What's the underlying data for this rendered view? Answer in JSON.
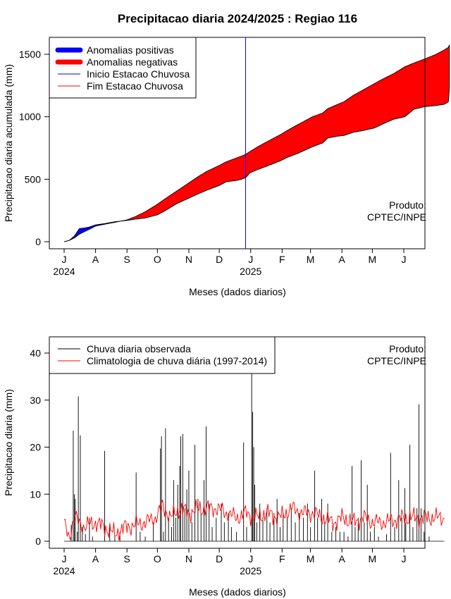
{
  "title": "Precipitacao diaria 2024/2025 : Regiao 116",
  "credit_line1": "Produto:",
  "credit_line2": "CPTEC/INPE",
  "chart_data": [
    {
      "type": "area",
      "ylabel": "Precipitacao diaria acumulada (mm)",
      "xlabel": "Meses (dados diarios)",
      "ylim": [
        0,
        1600
      ],
      "yticks": [
        0,
        500,
        1000,
        1500
      ],
      "months": [
        "J",
        "A",
        "S",
        "O",
        "N",
        "D",
        "J",
        "F",
        "M",
        "A",
        "M",
        "J"
      ],
      "years": [
        "2024",
        "2025"
      ],
      "legend": [
        {
          "label": "Anomalias positivas",
          "color": "#0000ff",
          "kind": "thick"
        },
        {
          "label": "Anomalias negativas",
          "color": "#ff0000",
          "kind": "thick"
        },
        {
          "label": "Inicio Estacao Chuvosa",
          "color": "#0000ff",
          "kind": "thin"
        },
        {
          "label": "Fim Estacao Chuvosa",
          "color": "#ff0000",
          "kind": "thin"
        }
      ],
      "rainy_season_start_day": 179,
      "x_days": [
        0,
        5,
        10,
        15,
        20,
        25,
        31,
        40,
        50,
        62,
        70,
        80,
        92,
        100,
        110,
        122,
        130,
        140,
        153,
        160,
        170,
        175,
        178,
        180,
        183,
        190,
        200,
        214,
        220,
        230,
        245,
        255,
        260,
        270,
        276,
        285,
        295,
        306,
        315,
        325,
        336,
        345,
        355,
        367,
        375,
        379,
        380
      ],
      "observed_mm": [
        0,
        10,
        45,
        105,
        110,
        118,
        135,
        145,
        160,
        170,
        180,
        190,
        215,
        250,
        300,
        345,
        375,
        410,
        450,
        480,
        490,
        500,
        510,
        520,
        550,
        575,
        605,
        650,
        675,
        705,
        760,
        790,
        830,
        845,
        850,
        875,
        890,
        910,
        945,
        980,
        1000,
        1060,
        1080,
        1090,
        1100,
        1120,
        1225
      ],
      "climatology_mm": [
        0,
        10,
        30,
        60,
        80,
        100,
        125,
        140,
        155,
        175,
        200,
        240,
        300,
        345,
        400,
        465,
        510,
        560,
        610,
        640,
        670,
        685,
        695,
        705,
        720,
        755,
        800,
        860,
        890,
        935,
        1000,
        1030,
        1065,
        1100,
        1120,
        1170,
        1215,
        1265,
        1305,
        1345,
        1400,
        1430,
        1460,
        1500,
        1535,
        1555,
        1575
      ]
    },
    {
      "type": "bar",
      "ylabel": "Precipitacao diaria (mm)",
      "xlabel": "Meses (dados diarios)",
      "ylim": [
        0,
        42
      ],
      "yticks": [
        0,
        10,
        20,
        30,
        40
      ],
      "months": [
        "J",
        "A",
        "S",
        "O",
        "N",
        "D",
        "J",
        "F",
        "M",
        "A",
        "M",
        "J"
      ],
      "years": [
        "2024",
        "2025"
      ],
      "legend": [
        {
          "label": "Chuva diaria observada",
          "color": "#000000"
        },
        {
          "label": "Climatologia de chuva diária (1997-2014)",
          "color": "#ff0000"
        }
      ],
      "observed_spikes": [
        {
          "day": 7,
          "value": 3.5
        },
        {
          "day": 9,
          "value": 23.5
        },
        {
          "day": 10,
          "value": 10
        },
        {
          "day": 11,
          "value": 9
        },
        {
          "day": 13,
          "value": 2
        },
        {
          "day": 14,
          "value": 30.8
        },
        {
          "day": 16,
          "value": 22.5
        },
        {
          "day": 18,
          "value": 3
        },
        {
          "day": 21,
          "value": 1.5
        },
        {
          "day": 25,
          "value": 5
        },
        {
          "day": 28,
          "value": 1
        },
        {
          "day": 40,
          "value": 19.2
        },
        {
          "day": 45,
          "value": 3
        },
        {
          "day": 50,
          "value": 1
        },
        {
          "day": 55,
          "value": 2
        },
        {
          "day": 71,
          "value": 14.6
        },
        {
          "day": 75,
          "value": 2
        },
        {
          "day": 80,
          "value": 1
        },
        {
          "day": 88,
          "value": 4
        },
        {
          "day": 95,
          "value": 19.7
        },
        {
          "day": 96,
          "value": 22.3
        },
        {
          "day": 98,
          "value": 2
        },
        {
          "day": 100,
          "value": 24
        },
        {
          "day": 103,
          "value": 5
        },
        {
          "day": 106,
          "value": 3
        },
        {
          "day": 108,
          "value": 13
        },
        {
          "day": 110,
          "value": 5
        },
        {
          "day": 112,
          "value": 12
        },
        {
          "day": 114,
          "value": 16
        },
        {
          "day": 115,
          "value": 22.3
        },
        {
          "day": 117,
          "value": 22.8
        },
        {
          "day": 119,
          "value": 7
        },
        {
          "day": 121,
          "value": 11
        },
        {
          "day": 123,
          "value": 15
        },
        {
          "day": 126,
          "value": 4
        },
        {
          "day": 129,
          "value": 20.5
        },
        {
          "day": 132,
          "value": 9
        },
        {
          "day": 135,
          "value": 6
        },
        {
          "day": 138,
          "value": 13
        },
        {
          "day": 140,
          "value": 24.4
        },
        {
          "day": 143,
          "value": 8
        },
        {
          "day": 146,
          "value": 3
        },
        {
          "day": 150,
          "value": 5
        },
        {
          "day": 155,
          "value": 8
        },
        {
          "day": 158,
          "value": 4
        },
        {
          "day": 162,
          "value": 6
        },
        {
          "day": 165,
          "value": 3
        },
        {
          "day": 170,
          "value": 2
        },
        {
          "day": 177,
          "value": 21
        },
        {
          "day": 180,
          "value": 3
        },
        {
          "day": 185,
          "value": 36
        },
        {
          "day": 186,
          "value": 27.5
        },
        {
          "day": 187,
          "value": 20
        },
        {
          "day": 188,
          "value": 12
        },
        {
          "day": 190,
          "value": 4
        },
        {
          "day": 193,
          "value": 8
        },
        {
          "day": 196,
          "value": 5
        },
        {
          "day": 200,
          "value": 7
        },
        {
          "day": 203,
          "value": 4
        },
        {
          "day": 207,
          "value": 6
        },
        {
          "day": 210,
          "value": 9
        },
        {
          "day": 213,
          "value": 3
        },
        {
          "day": 216,
          "value": 6
        },
        {
          "day": 220,
          "value": 5
        },
        {
          "day": 224,
          "value": 7
        },
        {
          "day": 228,
          "value": 4
        },
        {
          "day": 232,
          "value": 6
        },
        {
          "day": 236,
          "value": 5
        },
        {
          "day": 240,
          "value": 8
        },
        {
          "day": 243,
          "value": 3
        },
        {
          "day": 247,
          "value": 15
        },
        {
          "day": 250,
          "value": 5
        },
        {
          "day": 254,
          "value": 9
        },
        {
          "day": 257,
          "value": 4
        },
        {
          "day": 260,
          "value": 8
        },
        {
          "day": 264,
          "value": 2
        },
        {
          "day": 268,
          "value": 3
        },
        {
          "day": 272,
          "value": 2
        },
        {
          "day": 276,
          "value": 2
        },
        {
          "day": 280,
          "value": 1
        },
        {
          "day": 284,
          "value": 16
        },
        {
          "day": 287,
          "value": 3
        },
        {
          "day": 290,
          "value": 5
        },
        {
          "day": 293,
          "value": 17.2
        },
        {
          "day": 296,
          "value": 4
        },
        {
          "day": 299,
          "value": 12
        },
        {
          "day": 302,
          "value": 2
        },
        {
          "day": 306,
          "value": 3
        },
        {
          "day": 310,
          "value": 1
        },
        {
          "day": 318,
          "value": 1.5
        },
        {
          "day": 322,
          "value": 18.8
        },
        {
          "day": 326,
          "value": 3
        },
        {
          "day": 330,
          "value": 13
        },
        {
          "day": 333,
          "value": 5
        },
        {
          "day": 336,
          "value": 11.3
        },
        {
          "day": 337,
          "value": 4
        },
        {
          "day": 341,
          "value": 20.5
        },
        {
          "day": 344,
          "value": 3
        },
        {
          "day": 348,
          "value": 7
        },
        {
          "day": 350,
          "value": 29.1
        },
        {
          "day": 352,
          "value": 7
        },
        {
          "day": 355,
          "value": 2
        },
        {
          "day": 360,
          "value": 1
        }
      ],
      "climatology_knots": [
        {
          "day": 0,
          "value": 3.5
        },
        {
          "day": 5,
          "value": 1
        },
        {
          "day": 10,
          "value": 5
        },
        {
          "day": 20,
          "value": 3
        },
        {
          "day": 30,
          "value": 4
        },
        {
          "day": 40,
          "value": 3
        },
        {
          "day": 50,
          "value": 1.5
        },
        {
          "day": 60,
          "value": 3
        },
        {
          "day": 70,
          "value": 3.5
        },
        {
          "day": 80,
          "value": 4
        },
        {
          "day": 90,
          "value": 5
        },
        {
          "day": 97,
          "value": 7.5
        },
        {
          "day": 105,
          "value": 5
        },
        {
          "day": 115,
          "value": 7
        },
        {
          "day": 122,
          "value": 6
        },
        {
          "day": 135,
          "value": 7
        },
        {
          "day": 150,
          "value": 7
        },
        {
          "day": 160,
          "value": 6
        },
        {
          "day": 170,
          "value": 5
        },
        {
          "day": 180,
          "value": 6
        },
        {
          "day": 190,
          "value": 5
        },
        {
          "day": 200,
          "value": 6
        },
        {
          "day": 212,
          "value": 5
        },
        {
          "day": 225,
          "value": 7
        },
        {
          "day": 235,
          "value": 6
        },
        {
          "day": 245,
          "value": 6
        },
        {
          "day": 255,
          "value": 5
        },
        {
          "day": 265,
          "value": 4
        },
        {
          "day": 275,
          "value": 5
        },
        {
          "day": 285,
          "value": 4
        },
        {
          "day": 295,
          "value": 5
        },
        {
          "day": 305,
          "value": 4
        },
        {
          "day": 315,
          "value": 4
        },
        {
          "day": 325,
          "value": 4.5
        },
        {
          "day": 335,
          "value": 5
        },
        {
          "day": 345,
          "value": 5
        },
        {
          "day": 355,
          "value": 5
        },
        {
          "day": 365,
          "value": 5
        },
        {
          "day": 375,
          "value": 5
        }
      ]
    }
  ]
}
